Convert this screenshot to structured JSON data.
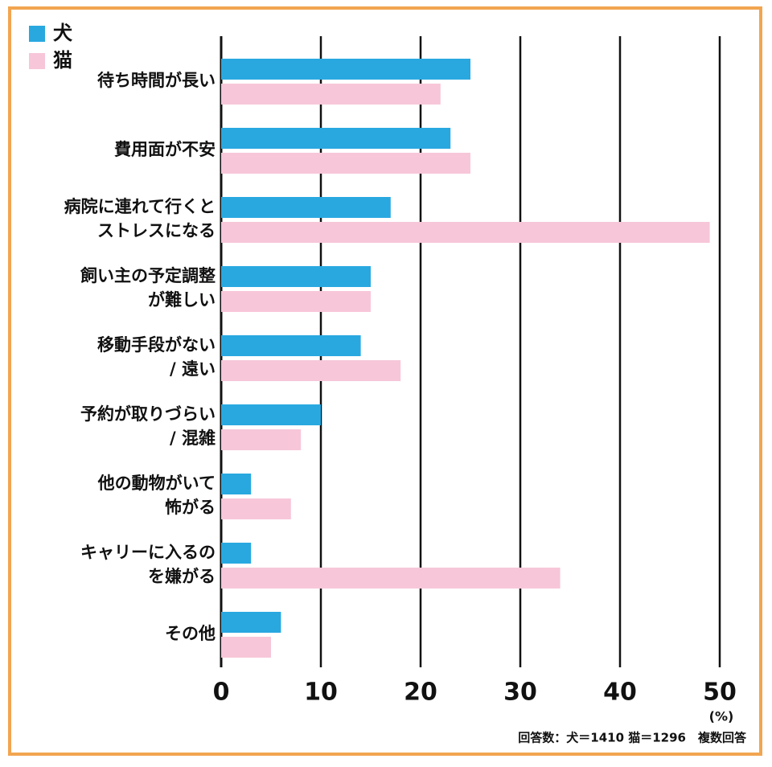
{
  "chart_data": {
    "type": "bar",
    "orientation": "horizontal",
    "categories": [
      [
        "待ち時間が長い"
      ],
      [
        "費用面が不安"
      ],
      [
        "病院に連れて行くと",
        "ストレスになる"
      ],
      [
        "飼い主の予定調整",
        "が難しい"
      ],
      [
        "移動手段がない",
        "/ 遠い"
      ],
      [
        "予約が取りづらい",
        "/ 混雑"
      ],
      [
        "他の動物がいて",
        "怖がる"
      ],
      [
        "キャリーに入るの",
        "を嫌がる"
      ],
      [
        "その他"
      ]
    ],
    "series": [
      {
        "name": "犬",
        "color": "#29a8e0",
        "values": [
          25,
          23,
          17,
          15,
          14,
          10,
          3,
          3,
          6
        ]
      },
      {
        "name": "猫",
        "color": "#f7c6d9",
        "values": [
          22,
          25,
          49,
          15,
          18,
          8,
          7,
          34,
          5
        ]
      }
    ],
    "xlim": [
      0,
      50
    ],
    "xticks": [
      0,
      10,
      20,
      30,
      40,
      50
    ],
    "grid": true,
    "unit": "(%)",
    "note": "回答数：犬＝1410 猫＝1296　複数回答",
    "legend": "top-left"
  }
}
